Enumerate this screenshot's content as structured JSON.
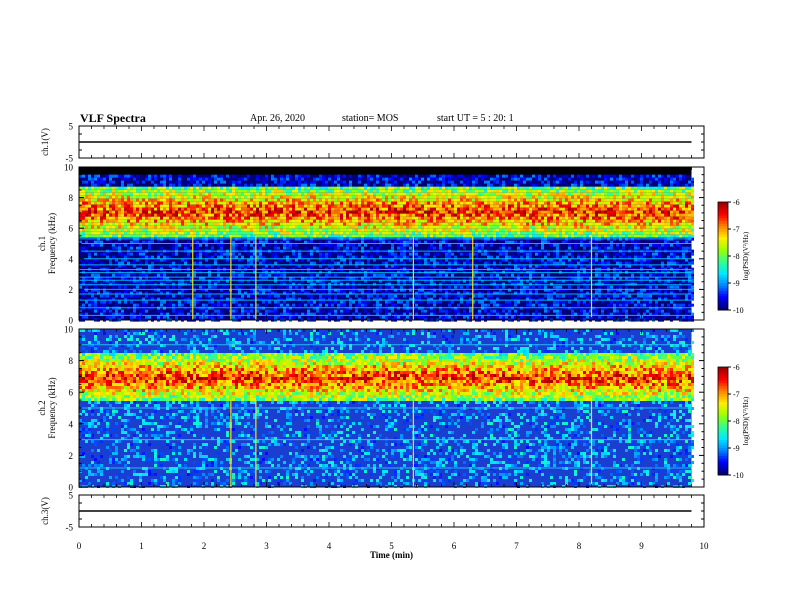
{
  "header": {
    "title": "VLF Spectra",
    "date": "Apr. 26, 2020",
    "station": "station= MOS",
    "start": "start UT =  5 : 20: 1"
  },
  "colors": {
    "background": "#ffffff",
    "axis": "#000000",
    "colormap": [
      "#00007a",
      "#0000ff",
      "#0088ff",
      "#00e8ff",
      "#32ff8a",
      "#9cff00",
      "#ffee00",
      "#ff8800",
      "#ff0000",
      "#a00000"
    ]
  },
  "chart_data": [
    {
      "type": "line",
      "panel": "ch1-voltage",
      "ylabel": "ch.1(V)",
      "ylim": [
        -5,
        5
      ],
      "ytick_labels": [
        "5",
        "-5"
      ],
      "x": [
        0,
        9.8
      ],
      "y": [
        0,
        0
      ]
    },
    {
      "type": "heatmap",
      "panel": "ch1-spectrogram",
      "ylabel": "ch.1\nFrequency (kHz)",
      "ylim": [
        0,
        10
      ],
      "ytick_labels": [
        "0",
        "2",
        "4",
        "6",
        "8",
        "10"
      ],
      "xlim": [
        0,
        10
      ],
      "data_extent_min": 9.8,
      "band_khz": [
        5.5,
        8.8
      ],
      "top_cutoff_khz": 9.5,
      "lines_khz": [
        0.3,
        0.8,
        1.3,
        1.7,
        2.0,
        2.3,
        2.6,
        2.8,
        3.1,
        3.3,
        3.6,
        4.0,
        4.5,
        5.0,
        5.3
      ],
      "spikes_min": [
        1.82,
        2.43,
        2.83,
        5.35,
        6.3,
        8.2
      ],
      "colorbar": {
        "label": "log(PSD)(V²/Hz)",
        "range": [
          -10,
          -6
        ],
        "tick_labels": [
          "-6",
          "-7",
          "-8",
          "-9",
          "-10"
        ]
      }
    },
    {
      "type": "heatmap",
      "panel": "ch2-spectrogram",
      "ylabel": "ch.2\nFrequency (kHz)",
      "ylim": [
        0,
        10
      ],
      "ytick_labels": [
        "0",
        "2",
        "4",
        "6",
        "8",
        "10"
      ],
      "xlim": [
        0,
        10
      ],
      "data_extent_min": 9.8,
      "band_khz": [
        5.5,
        8.5
      ],
      "lines_khz": [
        1.2,
        3.0,
        5.0,
        9.0
      ],
      "spikes_min": [
        2.43,
        2.83,
        5.35,
        8.2
      ],
      "colorbar": {
        "label": "log(PSD)(V²/Hz)",
        "range": [
          -10,
          -6
        ],
        "tick_labels": [
          "-6",
          "-7",
          "-8",
          "-9",
          "-10"
        ]
      }
    },
    {
      "type": "line",
      "panel": "ch3-voltage",
      "ylabel": "ch.3(V)",
      "ylim": [
        -5,
        5
      ],
      "ytick_labels": [
        "5",
        "-5"
      ],
      "x": [
        0,
        9.8
      ],
      "y": [
        0,
        0
      ]
    }
  ],
  "x_axis": {
    "label": "Time (min)",
    "range": [
      0,
      10
    ],
    "tick_labels": [
      "0",
      "1",
      "2",
      "3",
      "4",
      "5",
      "6",
      "7",
      "8",
      "9",
      "10"
    ]
  }
}
